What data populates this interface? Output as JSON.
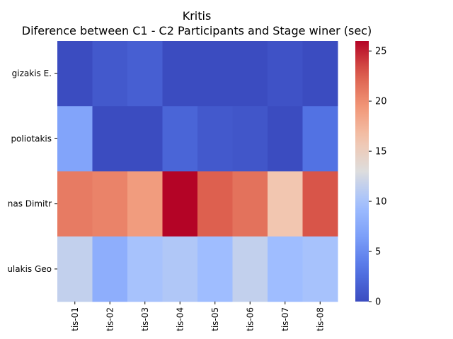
{
  "chart_data": {
    "type": "heatmap",
    "title": "Kritis",
    "subtitle": "Diference between C1 - C2 Participants and Stage winer (sec)",
    "xlabel": "",
    "ylabel": "",
    "x_categories": [
      "tis-01",
      "tis-02",
      "tis-03",
      "tis-04",
      "tis-05",
      "tis-06",
      "tis-07",
      "tis-08"
    ],
    "y_categories": [
      "gizakis E.",
      "poliotakis",
      "nas Dimitr",
      "ulakis Geo"
    ],
    "values": [
      [
        0.0,
        1.0,
        1.5,
        0.0,
        0.0,
        0.0,
        0.5,
        0.0
      ],
      [
        7.0,
        0.0,
        0.0,
        2.0,
        1.0,
        0.8,
        0.0,
        3.0
      ],
      [
        21.0,
        20.5,
        19.0,
        26.0,
        22.5,
        21.5,
        16.0,
        23.0
      ],
      [
        11.5,
        8.0,
        10.0,
        10.5,
        9.5,
        11.5,
        9.5,
        10.0
      ]
    ],
    "colorscale": "coolwarm",
    "colorbar": {
      "min": 0,
      "max": 26,
      "ticks": [
        0,
        5,
        10,
        15,
        20,
        25
      ]
    },
    "grid": false,
    "legend": "colorbar-right"
  }
}
